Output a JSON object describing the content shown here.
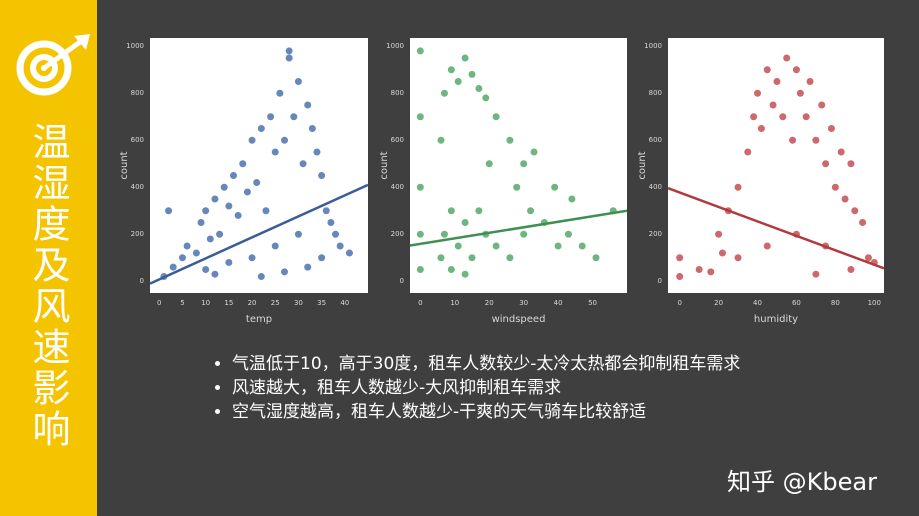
{
  "sidebar": {
    "title": "温湿度及风速影响"
  },
  "chart_data": [
    {
      "type": "scatter",
      "x_label": "temp",
      "y_label": "count",
      "color": "#4c72b0",
      "xlim": [
        -2,
        45
      ],
      "ylim": [
        -50,
        1035
      ],
      "xticks": [
        0,
        5,
        10,
        15,
        20,
        25,
        30,
        35,
        40
      ],
      "yticks": [
        0,
        200,
        400,
        600,
        800,
        1000
      ],
      "x": [
        1,
        3,
        5,
        6,
        8,
        9,
        10,
        11,
        12,
        13,
        14,
        15,
        16,
        17,
        18,
        19,
        20,
        21,
        22,
        23,
        24,
        25,
        26,
        27,
        28,
        29,
        30,
        31,
        32,
        33,
        34,
        35,
        36,
        37,
        38,
        39,
        41,
        10,
        15,
        20,
        25,
        30,
        35,
        2,
        12,
        22,
        27,
        32,
        28
      ],
      "values": [
        20,
        60,
        100,
        150,
        120,
        250,
        300,
        180,
        350,
        200,
        400,
        320,
        450,
        280,
        500,
        380,
        600,
        420,
        650,
        300,
        700,
        550,
        800,
        600,
        950,
        700,
        850,
        500,
        750,
        650,
        550,
        450,
        300,
        250,
        200,
        150,
        120,
        50,
        80,
        100,
        150,
        200,
        100,
        300,
        30,
        20,
        40,
        60,
        980
      ],
      "regression": {
        "x": [
          -2,
          45
        ],
        "values": [
          -10,
          410
        ]
      }
    },
    {
      "type": "scatter",
      "x_label": "windspeed",
      "y_label": "count",
      "color": "#55a868",
      "xlim": [
        -3,
        60
      ],
      "ylim": [
        -50,
        1035
      ],
      "xticks": [
        0,
        10,
        20,
        30,
        40,
        50
      ],
      "yticks": [
        0,
        200,
        400,
        600,
        800,
        1000
      ],
      "x": [
        0,
        0,
        0,
        0,
        6,
        6,
        7,
        7,
        9,
        9,
        11,
        11,
        13,
        13,
        15,
        15,
        17,
        17,
        19,
        19,
        20,
        22,
        22,
        26,
        26,
        28,
        30,
        30,
        32,
        33,
        36,
        39,
        40,
        43,
        44,
        47,
        51,
        56,
        0,
        9,
        13
      ],
      "values": [
        50,
        400,
        700,
        980,
        100,
        600,
        200,
        800,
        300,
        900,
        150,
        850,
        250,
        950,
        100,
        880,
        300,
        820,
        200,
        780,
        500,
        150,
        700,
        100,
        600,
        400,
        200,
        500,
        300,
        550,
        250,
        400,
        150,
        200,
        350,
        150,
        100,
        300,
        200,
        50,
        30
      ],
      "regression": {
        "x": [
          -3,
          60
        ],
        "values": [
          152,
          300
        ]
      }
    },
    {
      "type": "scatter",
      "x_label": "humidity",
      "y_label": "count",
      "color": "#c44e52",
      "xlim": [
        -6,
        105
      ],
      "ylim": [
        -50,
        1035
      ],
      "xticks": [
        0,
        20,
        40,
        60,
        80,
        100
      ],
      "yticks": [
        0,
        200,
        400,
        600,
        800,
        1000
      ],
      "x": [
        0,
        0,
        10,
        16,
        20,
        25,
        30,
        35,
        38,
        40,
        42,
        45,
        48,
        50,
        53,
        55,
        58,
        60,
        62,
        65,
        67,
        70,
        73,
        75,
        78,
        80,
        83,
        85,
        88,
        90,
        94,
        97,
        100,
        30,
        45,
        60,
        75,
        88,
        22,
        70
      ],
      "values": [
        20,
        100,
        50,
        40,
        200,
        300,
        400,
        550,
        700,
        800,
        650,
        900,
        750,
        850,
        700,
        950,
        600,
        900,
        800,
        700,
        850,
        600,
        750,
        500,
        650,
        400,
        550,
        350,
        500,
        300,
        250,
        100,
        80,
        100,
        150,
        200,
        150,
        50,
        120,
        30
      ],
      "regression": {
        "x": [
          -6,
          105
        ],
        "values": [
          396,
          55
        ]
      }
    }
  ],
  "bullets": [
    "气温低于10，高于30度，租车人数较少-太冷太热都会抑制租车需求",
    "风速越大，租车人数越少-大风抑制租车需求",
    "空气湿度越高，租车人数越少-干爽的天气骑车比较舒适"
  ],
  "watermark": "知乎 @Kbear"
}
